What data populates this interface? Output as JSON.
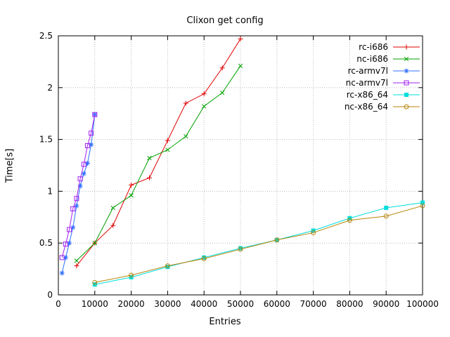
{
  "page": {
    "background": "#ffffff"
  },
  "chart_data": {
    "type": "line",
    "title": "Clixon get config",
    "xlabel": "Entries",
    "ylabel": "Time[s]",
    "xlim": [
      0,
      100000
    ],
    "ylim": [
      0,
      2.5
    ],
    "x_ticks": [
      0,
      10000,
      20000,
      30000,
      40000,
      50000,
      60000,
      70000,
      80000,
      90000,
      100000
    ],
    "x_tick_labels": [
      "0",
      "10000",
      "20000",
      "30000",
      "40000",
      "50000",
      "60000",
      "70000",
      "80000",
      "90000",
      "100000"
    ],
    "y_ticks": [
      0,
      0.5,
      1,
      1.5,
      2,
      2.5
    ],
    "y_tick_labels": [
      "0",
      "0.5",
      "1",
      "1.5",
      "2",
      "2.5"
    ],
    "grid": true,
    "legend_position": "top-right-inside",
    "series": [
      {
        "name": "rc-i686",
        "color": "#e00000",
        "marker": "plus",
        "points": [
          [
            5000,
            0.28
          ],
          [
            10000,
            0.5
          ],
          [
            15000,
            0.67
          ],
          [
            20000,
            1.06
          ],
          [
            25000,
            1.13
          ],
          [
            30000,
            1.49
          ],
          [
            35000,
            1.85
          ],
          [
            40000,
            1.94
          ],
          [
            45000,
            2.19
          ],
          [
            50000,
            2.47
          ]
        ]
      },
      {
        "name": "nc-i686",
        "color": "#00a000",
        "marker": "cross",
        "points": [
          [
            5000,
            0.33
          ],
          [
            10000,
            0.5
          ],
          [
            15000,
            0.84
          ],
          [
            20000,
            0.96
          ],
          [
            25000,
            1.32
          ],
          [
            30000,
            1.4
          ],
          [
            35000,
            1.53
          ],
          [
            40000,
            1.82
          ],
          [
            45000,
            1.95
          ],
          [
            50000,
            2.21
          ]
        ]
      },
      {
        "name": "rc-armv7l",
        "color": "#2f6fff",
        "marker": "asterisk",
        "points": [
          [
            1000,
            0.21
          ],
          [
            2000,
            0.36
          ],
          [
            3000,
            0.5
          ],
          [
            4000,
            0.65
          ],
          [
            5000,
            0.86
          ],
          [
            6000,
            1.05
          ],
          [
            7000,
            1.17
          ],
          [
            8000,
            1.27
          ],
          [
            9000,
            1.45
          ],
          [
            10000,
            1.74
          ]
        ]
      },
      {
        "name": "nc-armv7l",
        "color": "#a020f0",
        "marker": "square-open",
        "points": [
          [
            1000,
            0.36
          ],
          [
            2000,
            0.49
          ],
          [
            3000,
            0.63
          ],
          [
            4000,
            0.83
          ],
          [
            5000,
            0.93
          ],
          [
            6000,
            1.12
          ],
          [
            7000,
            1.26
          ],
          [
            8000,
            1.44
          ],
          [
            9000,
            1.56
          ],
          [
            10000,
            1.74
          ]
        ]
      },
      {
        "name": "rc-x86_64",
        "color": "#00dddd",
        "marker": "square-filled",
        "points": [
          [
            10000,
            0.1
          ],
          [
            20000,
            0.17
          ],
          [
            30000,
            0.27
          ],
          [
            40000,
            0.36
          ],
          [
            50000,
            0.45
          ],
          [
            60000,
            0.53
          ],
          [
            70000,
            0.62
          ],
          [
            80000,
            0.74
          ],
          [
            90000,
            0.84
          ],
          [
            100000,
            0.89
          ]
        ]
      },
      {
        "name": "nc-x86_64",
        "color": "#b8860b",
        "marker": "circle-open",
        "points": [
          [
            10000,
            0.12
          ],
          [
            20000,
            0.19
          ],
          [
            30000,
            0.28
          ],
          [
            40000,
            0.35
          ],
          [
            50000,
            0.44
          ],
          [
            60000,
            0.53
          ],
          [
            70000,
            0.6
          ],
          [
            80000,
            0.72
          ],
          [
            90000,
            0.76
          ],
          [
            100000,
            0.86
          ]
        ]
      }
    ]
  }
}
